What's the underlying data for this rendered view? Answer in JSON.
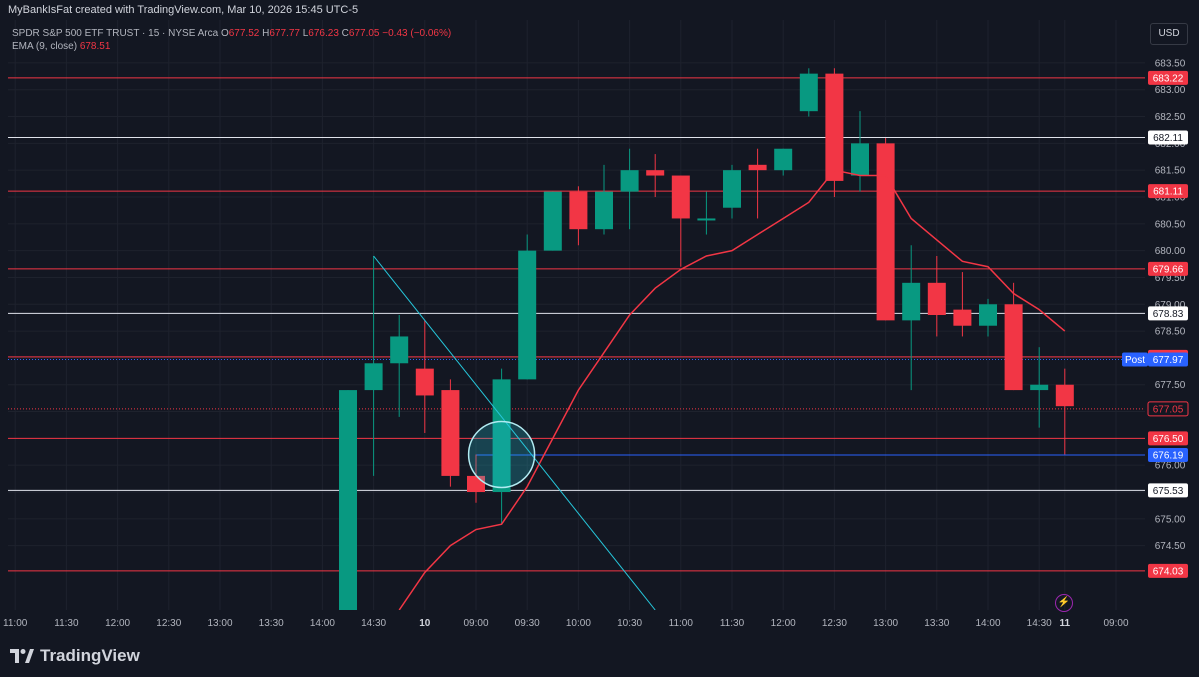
{
  "header": {
    "attribution": "MyBankIsFat created with TradingView.com, Mar 10, 2026 15:45 UTC-5"
  },
  "legend": {
    "symbol": "SPDR S&P 500 ETF TRUST · 15 · NYSE Arca",
    "o_label": "O",
    "o_value": "677.52",
    "h_label": "H",
    "h_value": "677.77",
    "l_label": "L",
    "l_value": "676.23",
    "c_label": "C",
    "c_value": "677.05",
    "change": "−0.43 (−0.06%)",
    "ema_label": "EMA (9, close)",
    "ema_value": "678.51"
  },
  "currency_button": "USD",
  "brand": "TradingView",
  "colors": {
    "background": "#131722",
    "up": "#089981",
    "down": "#f23645",
    "ema": "#f23645",
    "trendline": "#26c6da",
    "blue": "#2962ff"
  },
  "chart_data": {
    "type": "candlestick",
    "symbol": "SPY",
    "interval": "15",
    "ylim": [
      673.3,
      684.3
    ],
    "y_ticks": [
      "674.50",
      "675.00",
      "675.50",
      "676.00",
      "676.50",
      "677.00",
      "677.50",
      "678.00",
      "678.50",
      "679.00",
      "679.50",
      "680.00",
      "680.50",
      "681.00",
      "681.50",
      "682.00",
      "682.50",
      "683.00",
      "683.50"
    ],
    "x_ticks": [
      {
        "label": "11:00",
        "i": -33
      },
      {
        "label": "11:30",
        "i": -31
      },
      {
        "label": "12:00",
        "i": -29
      },
      {
        "label": "12:30",
        "i": -27
      },
      {
        "label": "13:00",
        "i": -25
      },
      {
        "label": "13:30",
        "i": -23
      },
      {
        "label": "14:00",
        "i": -21
      },
      {
        "label": "14:30",
        "i": -19
      },
      {
        "label": "10",
        "i": -17,
        "bold": true
      },
      {
        "label": "09:00",
        "i": -15
      },
      {
        "label": "09:30",
        "i": -13
      },
      {
        "label": "10:00",
        "i": -11
      },
      {
        "label": "10:30",
        "i": -9
      },
      {
        "label": "11:00",
        "i": -7
      },
      {
        "label": "11:30",
        "i": -5
      },
      {
        "label": "12:00",
        "i": -3
      },
      {
        "label": "12:30",
        "i": -1
      },
      {
        "label": "13:00",
        "i": 1
      },
      {
        "label": "13:30",
        "i": 3
      },
      {
        "label": "14:00",
        "i": 5
      },
      {
        "label": "14:30",
        "i": 7
      },
      {
        "label": "11",
        "i": 8,
        "bold": true
      },
      {
        "label": "09:00",
        "i": 10
      }
    ],
    "candles": [
      {
        "i": -20,
        "o": 673.3,
        "h": 677.4,
        "l": 673.3,
        "c": 677.4
      },
      {
        "i": -19,
        "o": 677.4,
        "h": 679.9,
        "l": 675.8,
        "c": 677.9
      },
      {
        "i": -18,
        "o": 677.9,
        "h": 678.8,
        "l": 676.9,
        "c": 678.4
      },
      {
        "i": -17,
        "o": 677.8,
        "h": 678.7,
        "l": 676.6,
        "c": 677.3
      },
      {
        "i": -16,
        "o": 677.4,
        "h": 677.6,
        "l": 675.6,
        "c": 675.8
      },
      {
        "i": -15,
        "o": 675.8,
        "h": 676.2,
        "l": 675.3,
        "c": 675.5
      },
      {
        "i": -14,
        "o": 675.5,
        "h": 677.8,
        "l": 674.9,
        "c": 677.6
      },
      {
        "i": -13,
        "o": 677.6,
        "h": 680.3,
        "l": 677.6,
        "c": 680.0
      },
      {
        "i": -12,
        "o": 680.0,
        "h": 681.1,
        "l": 680.0,
        "c": 681.1
      },
      {
        "i": -11,
        "o": 681.1,
        "h": 681.2,
        "l": 680.1,
        "c": 680.4
      },
      {
        "i": -10,
        "o": 680.4,
        "h": 681.6,
        "l": 680.3,
        "c": 681.1
      },
      {
        "i": -9,
        "o": 681.1,
        "h": 681.9,
        "l": 680.4,
        "c": 681.5
      },
      {
        "i": -8,
        "o": 681.5,
        "h": 681.8,
        "l": 681.0,
        "c": 681.4
      },
      {
        "i": -7,
        "o": 681.4,
        "h": 681.4,
        "l": 679.7,
        "c": 680.6
      },
      {
        "i": -6,
        "o": 680.6,
        "h": 681.1,
        "l": 680.3,
        "c": 680.6
      },
      {
        "i": -5,
        "o": 680.8,
        "h": 681.6,
        "l": 680.6,
        "c": 681.5
      },
      {
        "i": -4,
        "o": 681.6,
        "h": 681.9,
        "l": 680.6,
        "c": 681.5
      },
      {
        "i": -3,
        "o": 681.5,
        "h": 681.9,
        "l": 681.4,
        "c": 681.9
      },
      {
        "i": -2,
        "o": 682.6,
        "h": 683.4,
        "l": 682.5,
        "c": 683.3
      },
      {
        "i": -1,
        "o": 683.3,
        "h": 683.4,
        "l": 681.0,
        "c": 681.3
      },
      {
        "i": 0,
        "o": 681.4,
        "h": 682.6,
        "l": 681.1,
        "c": 682.0
      },
      {
        "i": 1,
        "o": 682.0,
        "h": 682.1,
        "l": 678.7,
        "c": 678.7
      },
      {
        "i": 2,
        "o": 678.7,
        "h": 680.1,
        "l": 677.4,
        "c": 679.4
      },
      {
        "i": 3,
        "o": 679.4,
        "h": 679.9,
        "l": 678.4,
        "c": 678.8
      },
      {
        "i": 4,
        "o": 678.9,
        "h": 679.6,
        "l": 678.4,
        "c": 678.6
      },
      {
        "i": 5,
        "o": 678.6,
        "h": 679.1,
        "l": 678.4,
        "c": 679.0
      },
      {
        "i": 6,
        "o": 679.0,
        "h": 679.4,
        "l": 677.4,
        "c": 677.4
      },
      {
        "i": 7,
        "o": 677.4,
        "h": 678.2,
        "l": 676.7,
        "c": 677.5
      },
      {
        "i": 8,
        "o": 677.5,
        "h": 677.8,
        "l": 676.2,
        "c": 677.1
      }
    ],
    "ema": [
      {
        "i": -18,
        "v": 673.3
      },
      {
        "i": -17,
        "v": 674.0
      },
      {
        "i": -16,
        "v": 674.5
      },
      {
        "i": -15,
        "v": 674.8
      },
      {
        "i": -14,
        "v": 674.9
      },
      {
        "i": -13,
        "v": 675.6
      },
      {
        "i": -12,
        "v": 676.5
      },
      {
        "i": -11,
        "v": 677.4
      },
      {
        "i": -10,
        "v": 678.1
      },
      {
        "i": -9,
        "v": 678.8
      },
      {
        "i": -8,
        "v": 679.3
      },
      {
        "i": -7,
        "v": 679.65
      },
      {
        "i": -6,
        "v": 679.9
      },
      {
        "i": -5,
        "v": 680.0
      },
      {
        "i": -4,
        "v": 680.3
      },
      {
        "i": -3,
        "v": 680.6
      },
      {
        "i": -2,
        "v": 680.9
      },
      {
        "i": -1,
        "v": 681.5
      },
      {
        "i": 0,
        "v": 681.4
      },
      {
        "i": 1,
        "v": 681.4
      },
      {
        "i": 2,
        "v": 680.6
      },
      {
        "i": 3,
        "v": 680.2
      },
      {
        "i": 4,
        "v": 679.8
      },
      {
        "i": 5,
        "v": 679.7
      },
      {
        "i": 6,
        "v": 679.2
      },
      {
        "i": 7,
        "v": 678.9
      },
      {
        "i": 8,
        "v": 678.5
      }
    ],
    "horizontal_lines": [
      {
        "price": 683.22,
        "label": "683.22",
        "kind": "red"
      },
      {
        "price": 682.11,
        "label": "682.11",
        "kind": "white"
      },
      {
        "price": 681.11,
        "label": "681.11",
        "kind": "red"
      },
      {
        "price": 679.66,
        "label": "679.66",
        "kind": "red"
      },
      {
        "price": 678.83,
        "label": "678.83",
        "kind": "white"
      },
      {
        "price": 678.02,
        "label": "678.02",
        "kind": "red"
      },
      {
        "price": 676.5,
        "label": "676.50",
        "kind": "red"
      },
      {
        "price": 676.19,
        "label": "676.19",
        "kind": "blue"
      },
      {
        "price": 675.53,
        "label": "675.53",
        "kind": "white"
      },
      {
        "price": 674.03,
        "label": "674.03",
        "kind": "red"
      }
    ],
    "blue_line_start_i": -15,
    "price_tags": [
      {
        "price": 677.97,
        "label": "677.97",
        "kind": "blue",
        "prefix": "Post"
      },
      {
        "price": 677.05,
        "label": "677.05",
        "kind": "redoutline"
      }
    ],
    "dotted_lines": [
      {
        "price": 677.97,
        "color": "#2962ff"
      },
      {
        "price": 677.05,
        "color": "#f23645"
      }
    ],
    "trendline": {
      "start_i": -19,
      "start_p": 679.9,
      "end_i": -8,
      "end_p": 673.3
    },
    "circle": {
      "i": -14,
      "p": 676.2
    }
  }
}
